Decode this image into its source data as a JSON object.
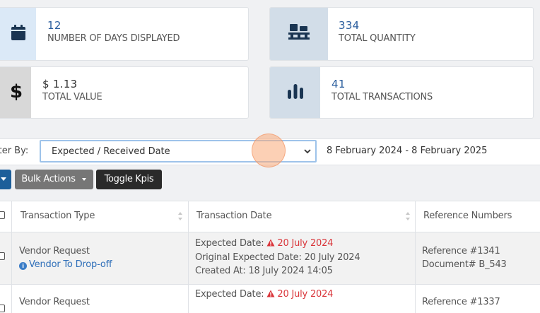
{
  "kpis": {
    "days": {
      "value": "12",
      "label": "NUMBER OF DAYS DISPLAYED",
      "icon": "calendar-icon"
    },
    "quantity": {
      "value": "334",
      "label": "TOTAL QUANTITY",
      "icon": "pallet-icon"
    },
    "value": {
      "value": "$ 1.13",
      "label": "TOTAL VALUE",
      "icon": "dollar-icon"
    },
    "transactions": {
      "value": "41",
      "label": "TOTAL TRANSACTIONS",
      "icon": "bar-chart-icon"
    }
  },
  "filter": {
    "label": "lter By:",
    "selected": "Expected / Received Date",
    "date_range": "8 February 2024 - 8 February 2025"
  },
  "toolbar": {
    "bulk_actions": "Bulk Actions",
    "toggle_kpis": "Toggle Kpis"
  },
  "table": {
    "headers": [
      "Transaction Type",
      "Transaction Date",
      "Reference Numbers"
    ],
    "rows": [
      {
        "type": "Vendor Request",
        "subtype": "Vendor To Drop-off",
        "expected_label": "Expected Date:",
        "expected_value": "20 July 2024",
        "original_expected": "Original Expected Date:  20 July 2024",
        "created_at": "Created At: 18 July 2024 14:05",
        "reference": "Reference #1341",
        "document": "Document# B_543"
      },
      {
        "type": "Vendor Request",
        "expected_label": "Expected Date:",
        "expected_value": "20 July 2024",
        "reference": "Reference #1337"
      }
    ]
  },
  "colors": {
    "link": "#2f6fb9",
    "alert": "#d9353a",
    "primary_button": "#1d5f9a",
    "secondary_button": "#767676",
    "dark_button": "#2a2a2a"
  }
}
